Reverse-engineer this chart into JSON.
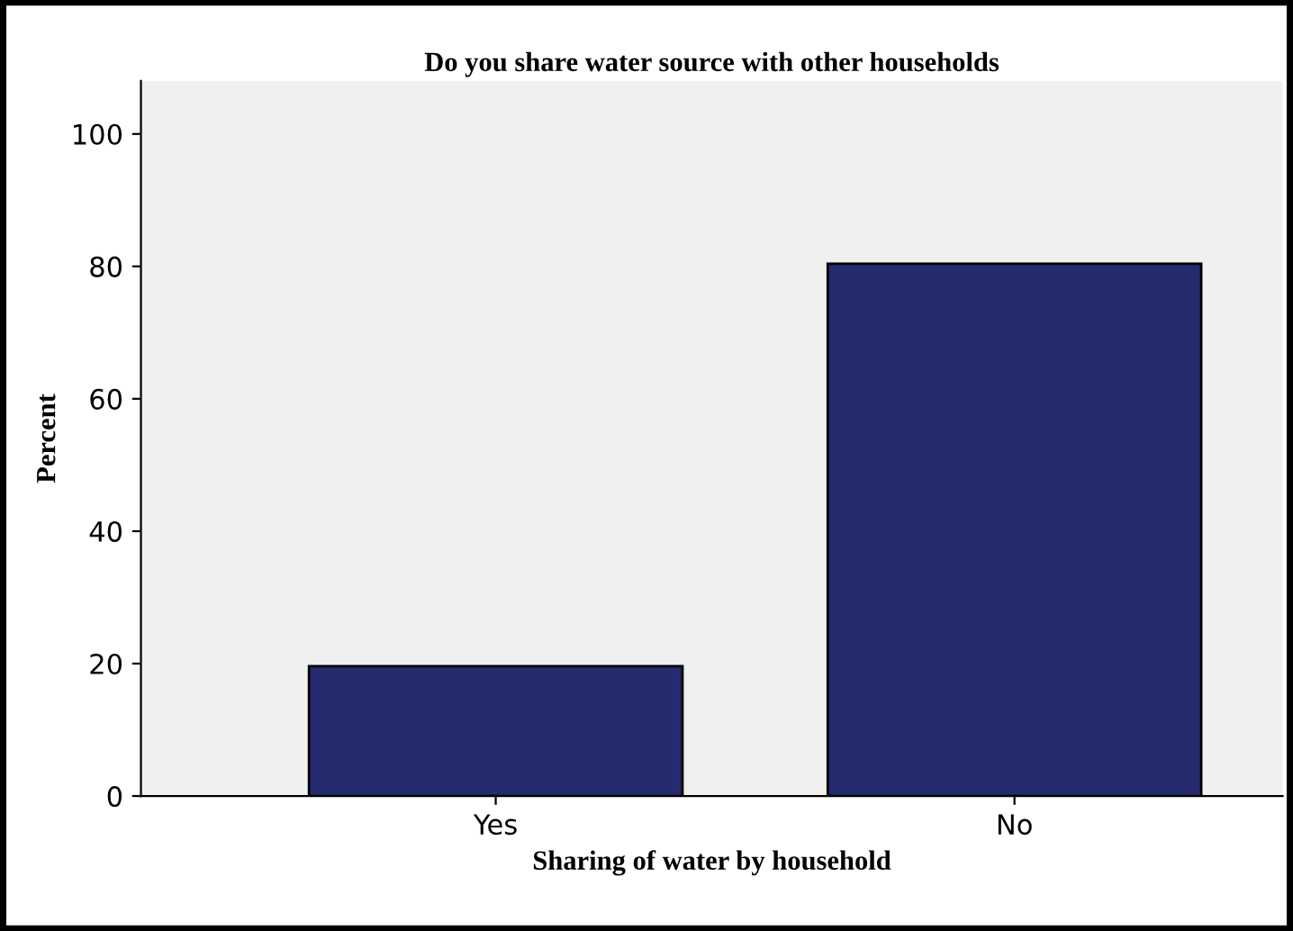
{
  "chart_data": {
    "type": "bar",
    "title": "Do you share water source with other households",
    "xlabel": "Sharing of water by household",
    "ylabel": "Percent",
    "categories": [
      "Yes",
      "No"
    ],
    "values": [
      19.6,
      80.4
    ],
    "color": "#262a6e",
    "ylim": [
      0,
      108
    ],
    "yticks": [
      0,
      20,
      40,
      60,
      80,
      100
    ],
    "grid": false,
    "legend": false
  }
}
